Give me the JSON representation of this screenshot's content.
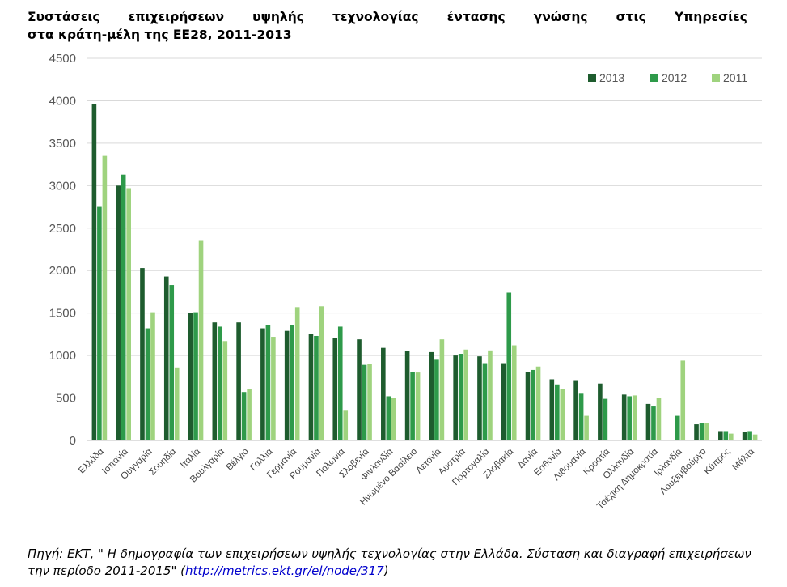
{
  "header": {
    "title_line1": "Συστάσεις επιχειρήσεων υψηλής τεχνολογίας έντασης γνώσης στις Υπηρεσίες",
    "title_line2": "στα κράτη-μέλη της ΕΕ28, 2011-2013"
  },
  "footer": {
    "source_prefix": "Πηγή: ΕΚΤ, \" Η δημογραφία των επιχειρήσεων υψηλής τεχνολογίας στην Ελλάδα. Σύσταση και διαγραφή επιχειρήσεων την περίοδο 2011-2015\" (",
    "source_link": "http://metrics.ekt.gr/el/node/317",
    "source_suffix": ")"
  },
  "chart_data": {
    "type": "bar",
    "ylim": [
      0,
      4500
    ],
    "yticks": [
      "0",
      "500",
      "1000",
      "1500",
      "2000",
      "2500",
      "3000",
      "3500",
      "4000",
      "4500"
    ],
    "grid": true,
    "legend_position": "top-right",
    "categories": [
      "Ελλάδα",
      "Ισπανία",
      "Ουγγαρία",
      "Σουηδία",
      "Ιταλία",
      "Βουλγαρία",
      "Βέλγιο",
      "Γαλλία",
      "Γερμανία",
      "Ρουμανία",
      "Πολωνία",
      "Σλοβενία",
      "Φινλανδία",
      "Ηνωμένο Βασίλειο",
      "Λετονία",
      "Αυστρία",
      "Πορτογαλία",
      "Σλοβακία",
      "Δανία",
      "Εσθονία",
      "Λιθουανία",
      "Κροατία",
      "Ολλανδία",
      "Τσέχικη Δημοκρατία",
      "Ιρλανδία",
      "Λουξεμβούργο",
      "Κύπρος",
      "Μάλτα"
    ],
    "series": [
      {
        "name": "2013",
        "color": "#1e5c2e",
        "values": [
          3960,
          3000,
          2030,
          1930,
          1500,
          1390,
          1390,
          1320,
          1290,
          1250,
          1210,
          1190,
          1090,
          1050,
          1040,
          1000,
          990,
          910,
          810,
          720,
          710,
          670,
          540,
          430,
          0,
          190,
          110,
          100
        ]
      },
      {
        "name": "2012",
        "color": "#2e9a4a",
        "values": [
          2750,
          3130,
          1320,
          1830,
          1510,
          1340,
          570,
          1360,
          1360,
          1230,
          1340,
          890,
          520,
          810,
          950,
          1020,
          910,
          1740,
          830,
          660,
          550,
          490,
          520,
          400,
          290,
          200,
          110,
          110
        ]
      },
      {
        "name": "2011",
        "color": "#9fd37e",
        "values": [
          3350,
          2970,
          1510,
          860,
          2350,
          1170,
          610,
          1220,
          1570,
          1580,
          350,
          900,
          500,
          800,
          1190,
          1070,
          1060,
          1120,
          870,
          610,
          290,
          0,
          530,
          500,
          940,
          200,
          80,
          70
        ]
      }
    ]
  }
}
